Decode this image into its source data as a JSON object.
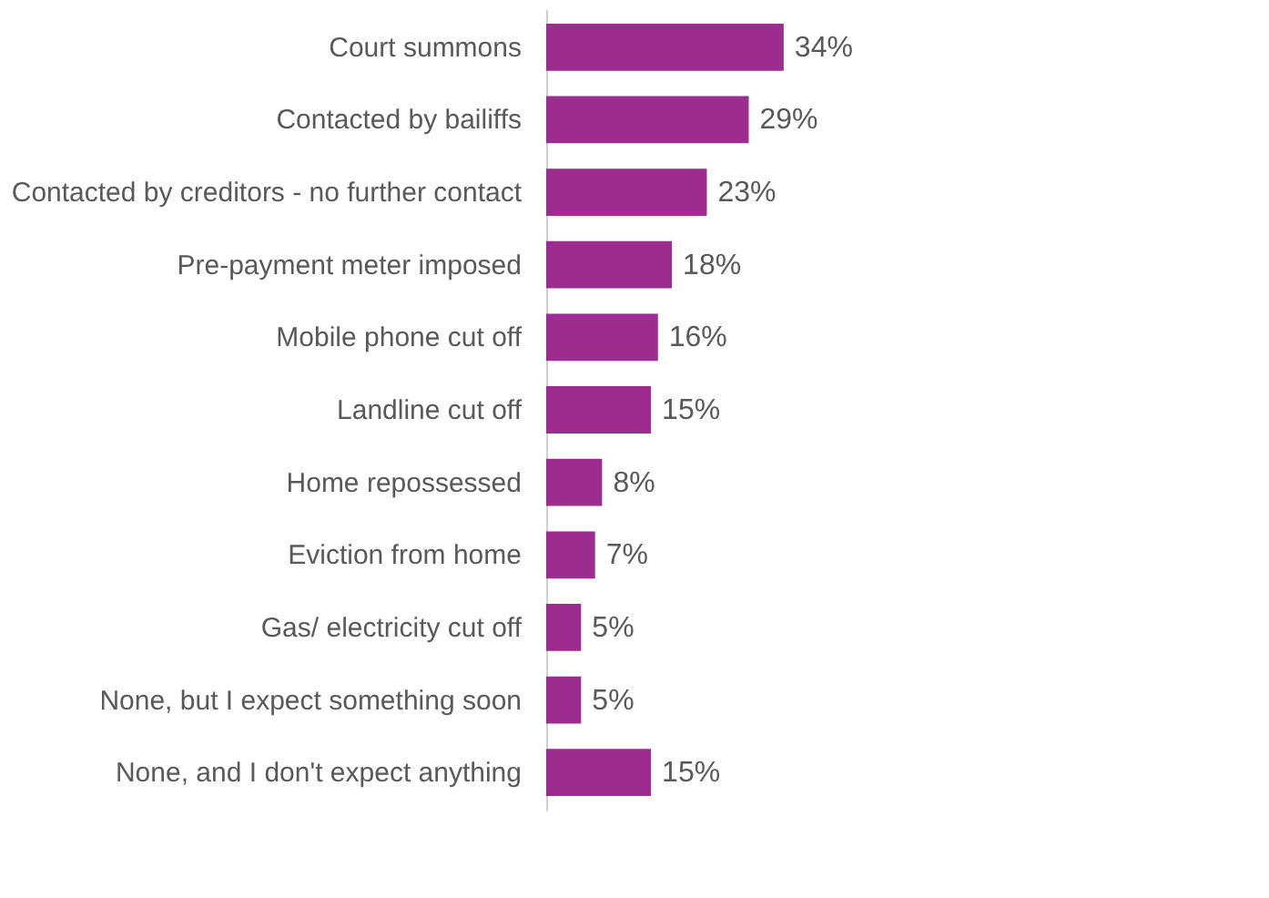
{
  "chart_data": {
    "type": "bar",
    "orientation": "horizontal",
    "categories": [
      "Court summons",
      "Contacted by bailiffs",
      "Contacted by creditors - no further contact",
      "Pre-payment meter imposed",
      "Mobile phone cut off",
      "Landline cut off",
      "Home repossessed",
      "Eviction from home",
      "Gas/ electricity cut off",
      "None, but I expect something soon",
      "None, and I don't expect anything"
    ],
    "values": [
      34,
      29,
      23,
      18,
      16,
      15,
      8,
      7,
      5,
      5,
      15
    ],
    "value_labels": [
      "34%",
      "29%",
      "23%",
      "18%",
      "16%",
      "15%",
      "8%",
      "7%",
      "5%",
      "5%",
      "15%"
    ],
    "color": "#9b2d8e"
  }
}
